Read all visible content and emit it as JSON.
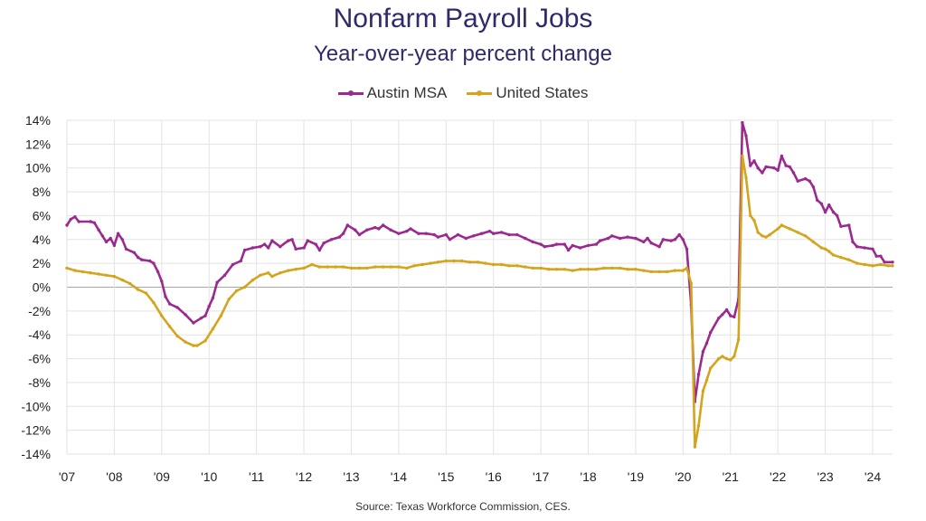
{
  "chart_data": {
    "type": "line",
    "title": "Nonfarm Payroll Jobs",
    "subtitle": "Year-over-year percent change",
    "source": "Source: Texas Workforce Commission, CES.",
    "ylim": [
      -14,
      14
    ],
    "yticks": [
      14,
      12,
      10,
      8,
      6,
      4,
      2,
      0,
      -2,
      -4,
      -6,
      -8,
      -10,
      -12,
      -14
    ],
    "ytick_labels": [
      "14%",
      "12%",
      "10%",
      "8%",
      "6%",
      "4%",
      "2%",
      "0%",
      "-2%",
      "-4%",
      "-6%",
      "-8%",
      "-10%",
      "-12%",
      "-14%"
    ],
    "xlim": [
      2007.0,
      2024.42
    ],
    "xticks": [
      2007,
      2008,
      2009,
      2010,
      2011,
      2012,
      2013,
      2014,
      2015,
      2016,
      2017,
      2018,
      2019,
      2020,
      2021,
      2022,
      2023,
      2024
    ],
    "xtick_labels": [
      "'07",
      "'08",
      "'09",
      "'10",
      "'11",
      "'12",
      "'13",
      "'14",
      "'15",
      "'16",
      "'17",
      "'18",
      "'19",
      "'20",
      "'21",
      "'22",
      "'23",
      "'24"
    ],
    "grid": true,
    "legend_position": "top-center",
    "series": [
      {
        "name": "Austin MSA",
        "color": "#9b2a8e",
        "points": [
          [
            2007.0,
            5.2
          ],
          [
            2007.08,
            5.7
          ],
          [
            2007.17,
            5.9
          ],
          [
            2007.25,
            5.5
          ],
          [
            2007.5,
            5.5
          ],
          [
            2007.58,
            5.4
          ],
          [
            2007.67,
            4.8
          ],
          [
            2007.75,
            4.3
          ],
          [
            2007.83,
            3.8
          ],
          [
            2007.92,
            4.1
          ],
          [
            2008.0,
            3.5
          ],
          [
            2008.08,
            4.5
          ],
          [
            2008.17,
            4.0
          ],
          [
            2008.25,
            3.2
          ],
          [
            2008.42,
            2.9
          ],
          [
            2008.5,
            2.5
          ],
          [
            2008.58,
            2.3
          ],
          [
            2008.75,
            2.2
          ],
          [
            2008.83,
            2.0
          ],
          [
            2008.92,
            1.3
          ],
          [
            2009.0,
            0.5
          ],
          [
            2009.08,
            -0.8
          ],
          [
            2009.17,
            -1.4
          ],
          [
            2009.33,
            -1.7
          ],
          [
            2009.5,
            -2.3
          ],
          [
            2009.67,
            -3.0
          ],
          [
            2009.83,
            -2.6
          ],
          [
            2009.92,
            -2.4
          ],
          [
            2010.0,
            -1.6
          ],
          [
            2010.08,
            -0.9
          ],
          [
            2010.17,
            0.4
          ],
          [
            2010.33,
            1.0
          ],
          [
            2010.5,
            1.9
          ],
          [
            2010.67,
            2.2
          ],
          [
            2010.75,
            3.1
          ],
          [
            2010.92,
            3.3
          ],
          [
            2011.08,
            3.4
          ],
          [
            2011.17,
            3.6
          ],
          [
            2011.25,
            3.3
          ],
          [
            2011.33,
            3.9
          ],
          [
            2011.5,
            3.4
          ],
          [
            2011.67,
            3.9
          ],
          [
            2011.75,
            4.0
          ],
          [
            2011.83,
            3.2
          ],
          [
            2012.0,
            3.3
          ],
          [
            2012.08,
            3.9
          ],
          [
            2012.25,
            3.6
          ],
          [
            2012.33,
            3.1
          ],
          [
            2012.42,
            3.7
          ],
          [
            2012.58,
            4.0
          ],
          [
            2012.75,
            4.2
          ],
          [
            2012.83,
            4.5
          ],
          [
            2012.92,
            5.2
          ],
          [
            2013.08,
            4.8
          ],
          [
            2013.17,
            4.4
          ],
          [
            2013.33,
            4.8
          ],
          [
            2013.5,
            5.0
          ],
          [
            2013.58,
            4.9
          ],
          [
            2013.67,
            5.2
          ],
          [
            2013.83,
            4.8
          ],
          [
            2014.0,
            4.5
          ],
          [
            2014.17,
            4.7
          ],
          [
            2014.25,
            4.9
          ],
          [
            2014.42,
            4.5
          ],
          [
            2014.58,
            4.5
          ],
          [
            2014.75,
            4.4
          ],
          [
            2014.83,
            4.2
          ],
          [
            2015.0,
            4.4
          ],
          [
            2015.08,
            4.0
          ],
          [
            2015.25,
            4.4
          ],
          [
            2015.42,
            4.1
          ],
          [
            2015.58,
            4.3
          ],
          [
            2015.75,
            4.5
          ],
          [
            2015.92,
            4.7
          ],
          [
            2016.0,
            4.5
          ],
          [
            2016.17,
            4.6
          ],
          [
            2016.33,
            4.4
          ],
          [
            2016.5,
            4.4
          ],
          [
            2016.67,
            4.1
          ],
          [
            2016.83,
            3.8
          ],
          [
            2017.0,
            3.6
          ],
          [
            2017.08,
            3.4
          ],
          [
            2017.25,
            3.5
          ],
          [
            2017.33,
            3.6
          ],
          [
            2017.5,
            3.6
          ],
          [
            2017.58,
            3.1
          ],
          [
            2017.67,
            3.5
          ],
          [
            2017.83,
            3.3
          ],
          [
            2018.0,
            3.5
          ],
          [
            2018.17,
            3.6
          ],
          [
            2018.25,
            3.9
          ],
          [
            2018.42,
            4.1
          ],
          [
            2018.5,
            4.3
          ],
          [
            2018.67,
            4.1
          ],
          [
            2018.83,
            4.2
          ],
          [
            2019.0,
            4.1
          ],
          [
            2019.17,
            3.8
          ],
          [
            2019.25,
            4.1
          ],
          [
            2019.33,
            3.7
          ],
          [
            2019.5,
            3.4
          ],
          [
            2019.58,
            4.0
          ],
          [
            2019.75,
            3.9
          ],
          [
            2019.83,
            4.0
          ],
          [
            2019.92,
            4.4
          ],
          [
            2020.0,
            4.0
          ],
          [
            2020.08,
            3.2
          ],
          [
            2020.17,
            -1.5
          ],
          [
            2020.25,
            -9.6
          ],
          [
            2020.33,
            -7.3
          ],
          [
            2020.42,
            -5.4
          ],
          [
            2020.5,
            -4.7
          ],
          [
            2020.58,
            -3.8
          ],
          [
            2020.75,
            -2.6
          ],
          [
            2020.83,
            -2.3
          ],
          [
            2020.92,
            -1.9
          ],
          [
            2021.0,
            -2.4
          ],
          [
            2021.08,
            -2.5
          ],
          [
            2021.17,
            -1.0
          ],
          [
            2021.25,
            13.8
          ],
          [
            2021.33,
            12.7
          ],
          [
            2021.42,
            10.2
          ],
          [
            2021.5,
            10.6
          ],
          [
            2021.58,
            10.0
          ],
          [
            2021.67,
            9.6
          ],
          [
            2021.75,
            10.1
          ],
          [
            2021.92,
            10.0
          ],
          [
            2022.0,
            9.8
          ],
          [
            2022.08,
            11.0
          ],
          [
            2022.17,
            10.2
          ],
          [
            2022.25,
            10.1
          ],
          [
            2022.33,
            9.6
          ],
          [
            2022.42,
            8.9
          ],
          [
            2022.58,
            9.1
          ],
          [
            2022.67,
            8.9
          ],
          [
            2022.75,
            8.4
          ],
          [
            2022.83,
            7.3
          ],
          [
            2022.92,
            7.0
          ],
          [
            2023.0,
            6.3
          ],
          [
            2023.08,
            6.9
          ],
          [
            2023.17,
            6.3
          ],
          [
            2023.25,
            6.0
          ],
          [
            2023.33,
            5.1
          ],
          [
            2023.5,
            5.2
          ],
          [
            2023.58,
            3.8
          ],
          [
            2023.67,
            3.4
          ],
          [
            2023.83,
            3.3
          ],
          [
            2024.0,
            3.2
          ],
          [
            2024.08,
            2.6
          ],
          [
            2024.17,
            2.6
          ],
          [
            2024.25,
            2.1
          ],
          [
            2024.42,
            2.1
          ]
        ]
      },
      {
        "name": "United States",
        "color": "#d4a51c",
        "points": [
          [
            2007.0,
            1.6
          ],
          [
            2007.17,
            1.4
          ],
          [
            2007.33,
            1.3
          ],
          [
            2007.5,
            1.2
          ],
          [
            2007.67,
            1.1
          ],
          [
            2007.83,
            1.0
          ],
          [
            2008.0,
            0.9
          ],
          [
            2008.17,
            0.6
          ],
          [
            2008.33,
            0.3
          ],
          [
            2008.5,
            -0.2
          ],
          [
            2008.67,
            -0.5
          ],
          [
            2008.83,
            -1.3
          ],
          [
            2009.0,
            -2.4
          ],
          [
            2009.17,
            -3.3
          ],
          [
            2009.33,
            -4.1
          ],
          [
            2009.5,
            -4.6
          ],
          [
            2009.67,
            -4.9
          ],
          [
            2009.75,
            -4.9
          ],
          [
            2009.92,
            -4.5
          ],
          [
            2010.08,
            -3.5
          ],
          [
            2010.25,
            -2.4
          ],
          [
            2010.42,
            -1.0
          ],
          [
            2010.58,
            -0.3
          ],
          [
            2010.75,
            0.0
          ],
          [
            2010.92,
            0.6
          ],
          [
            2011.08,
            1.0
          ],
          [
            2011.25,
            1.2
          ],
          [
            2011.33,
            0.9
          ],
          [
            2011.5,
            1.2
          ],
          [
            2011.67,
            1.4
          ],
          [
            2011.83,
            1.5
          ],
          [
            2012.0,
            1.6
          ],
          [
            2012.17,
            1.9
          ],
          [
            2012.33,
            1.7
          ],
          [
            2012.5,
            1.7
          ],
          [
            2012.67,
            1.7
          ],
          [
            2012.83,
            1.7
          ],
          [
            2013.0,
            1.6
          ],
          [
            2013.17,
            1.6
          ],
          [
            2013.33,
            1.6
          ],
          [
            2013.5,
            1.7
          ],
          [
            2013.67,
            1.7
          ],
          [
            2013.83,
            1.7
          ],
          [
            2014.0,
            1.7
          ],
          [
            2014.17,
            1.6
          ],
          [
            2014.33,
            1.8
          ],
          [
            2014.5,
            1.9
          ],
          [
            2014.67,
            2.0
          ],
          [
            2014.83,
            2.1
          ],
          [
            2015.0,
            2.2
          ],
          [
            2015.17,
            2.2
          ],
          [
            2015.33,
            2.2
          ],
          [
            2015.5,
            2.1
          ],
          [
            2015.67,
            2.1
          ],
          [
            2015.83,
            2.0
          ],
          [
            2016.0,
            1.9
          ],
          [
            2016.17,
            1.9
          ],
          [
            2016.33,
            1.8
          ],
          [
            2016.5,
            1.8
          ],
          [
            2016.67,
            1.7
          ],
          [
            2016.83,
            1.6
          ],
          [
            2017.0,
            1.6
          ],
          [
            2017.17,
            1.5
          ],
          [
            2017.33,
            1.5
          ],
          [
            2017.5,
            1.5
          ],
          [
            2017.67,
            1.4
          ],
          [
            2017.83,
            1.5
          ],
          [
            2018.0,
            1.5
          ],
          [
            2018.17,
            1.5
          ],
          [
            2018.33,
            1.6
          ],
          [
            2018.5,
            1.6
          ],
          [
            2018.67,
            1.6
          ],
          [
            2018.83,
            1.5
          ],
          [
            2019.0,
            1.5
          ],
          [
            2019.17,
            1.4
          ],
          [
            2019.33,
            1.3
          ],
          [
            2019.5,
            1.3
          ],
          [
            2019.67,
            1.3
          ],
          [
            2019.83,
            1.4
          ],
          [
            2020.0,
            1.4
          ],
          [
            2020.08,
            1.6
          ],
          [
            2020.17,
            0.3
          ],
          [
            2020.25,
            -13.4
          ],
          [
            2020.33,
            -11.6
          ],
          [
            2020.42,
            -8.7
          ],
          [
            2020.5,
            -7.8
          ],
          [
            2020.58,
            -6.8
          ],
          [
            2020.75,
            -6.0
          ],
          [
            2020.83,
            -5.8
          ],
          [
            2020.92,
            -6.0
          ],
          [
            2021.0,
            -6.1
          ],
          [
            2021.08,
            -5.8
          ],
          [
            2021.17,
            -4.4
          ],
          [
            2021.25,
            11.0
          ],
          [
            2021.33,
            9.2
          ],
          [
            2021.42,
            6.0
          ],
          [
            2021.5,
            5.6
          ],
          [
            2021.58,
            4.6
          ],
          [
            2021.67,
            4.3
          ],
          [
            2021.75,
            4.2
          ],
          [
            2021.83,
            4.4
          ],
          [
            2022.0,
            4.9
          ],
          [
            2022.08,
            5.2
          ],
          [
            2022.25,
            4.9
          ],
          [
            2022.42,
            4.6
          ],
          [
            2022.58,
            4.3
          ],
          [
            2022.75,
            3.8
          ],
          [
            2022.92,
            3.3
          ],
          [
            2023.0,
            3.2
          ],
          [
            2023.08,
            3.0
          ],
          [
            2023.17,
            2.7
          ],
          [
            2023.33,
            2.5
          ],
          [
            2023.5,
            2.3
          ],
          [
            2023.67,
            2.0
          ],
          [
            2023.83,
            1.9
          ],
          [
            2024.0,
            1.8
          ],
          [
            2024.17,
            1.9
          ],
          [
            2024.33,
            1.8
          ],
          [
            2024.42,
            1.8
          ]
        ]
      }
    ]
  }
}
